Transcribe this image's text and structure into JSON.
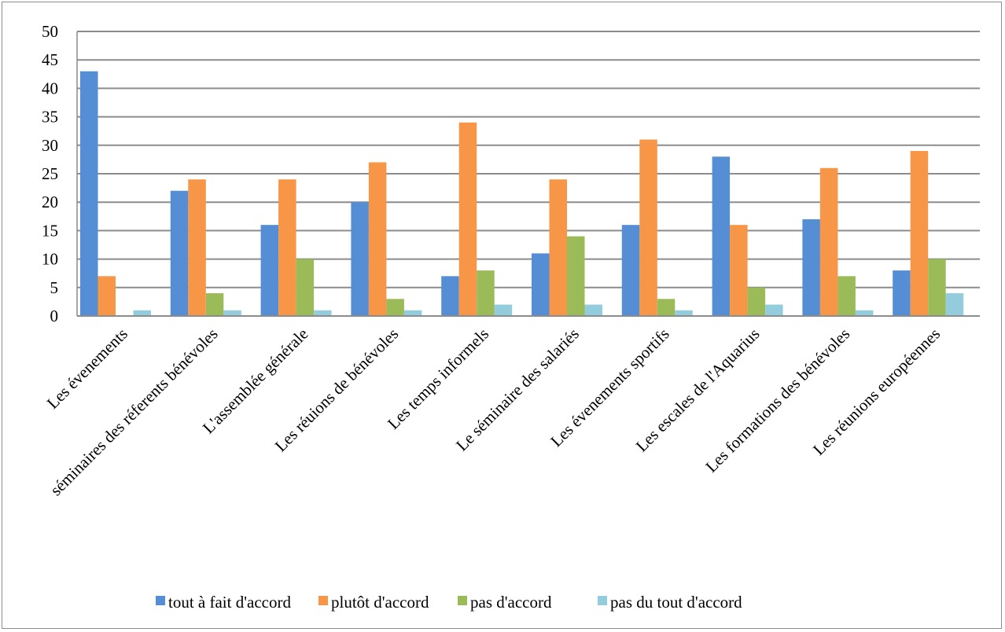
{
  "chart_data": {
    "type": "bar",
    "categories": [
      "Les évenements",
      "séminaires des réferents bénévoles",
      "L'assemblée générale",
      "Les réuions de bénévoles",
      "Les temps informels",
      "Le séminaire des salariés",
      "Les évenements sportifs",
      "Les escales de l'Aquarius",
      "Les formations des bénévoles",
      "Les réunions européennes"
    ],
    "series": [
      {
        "name": "tout à fait d'accord",
        "color": "#558ed5",
        "values": [
          43,
          22,
          16,
          20,
          7,
          11,
          16,
          28,
          17,
          8
        ]
      },
      {
        "name": "plutôt d'accord",
        "color": "#f79646",
        "values": [
          7,
          24,
          24,
          27,
          34,
          24,
          31,
          16,
          26,
          29
        ]
      },
      {
        "name": "pas d'accord",
        "color": "#9bbb59",
        "values": [
          0,
          4,
          10,
          3,
          8,
          14,
          3,
          5,
          7,
          10
        ]
      },
      {
        "name": "pas du tout d'accord",
        "color": "#93cddd",
        "values": [
          1,
          1,
          1,
          1,
          2,
          2,
          1,
          2,
          1,
          4
        ]
      }
    ],
    "title": "",
    "xlabel": "",
    "ylabel": "",
    "ylim": [
      0,
      50
    ],
    "yticks": [
      0,
      5,
      10,
      15,
      20,
      25,
      30,
      35,
      40,
      45,
      50
    ],
    "grid": true,
    "legend_position": "bottom"
  }
}
